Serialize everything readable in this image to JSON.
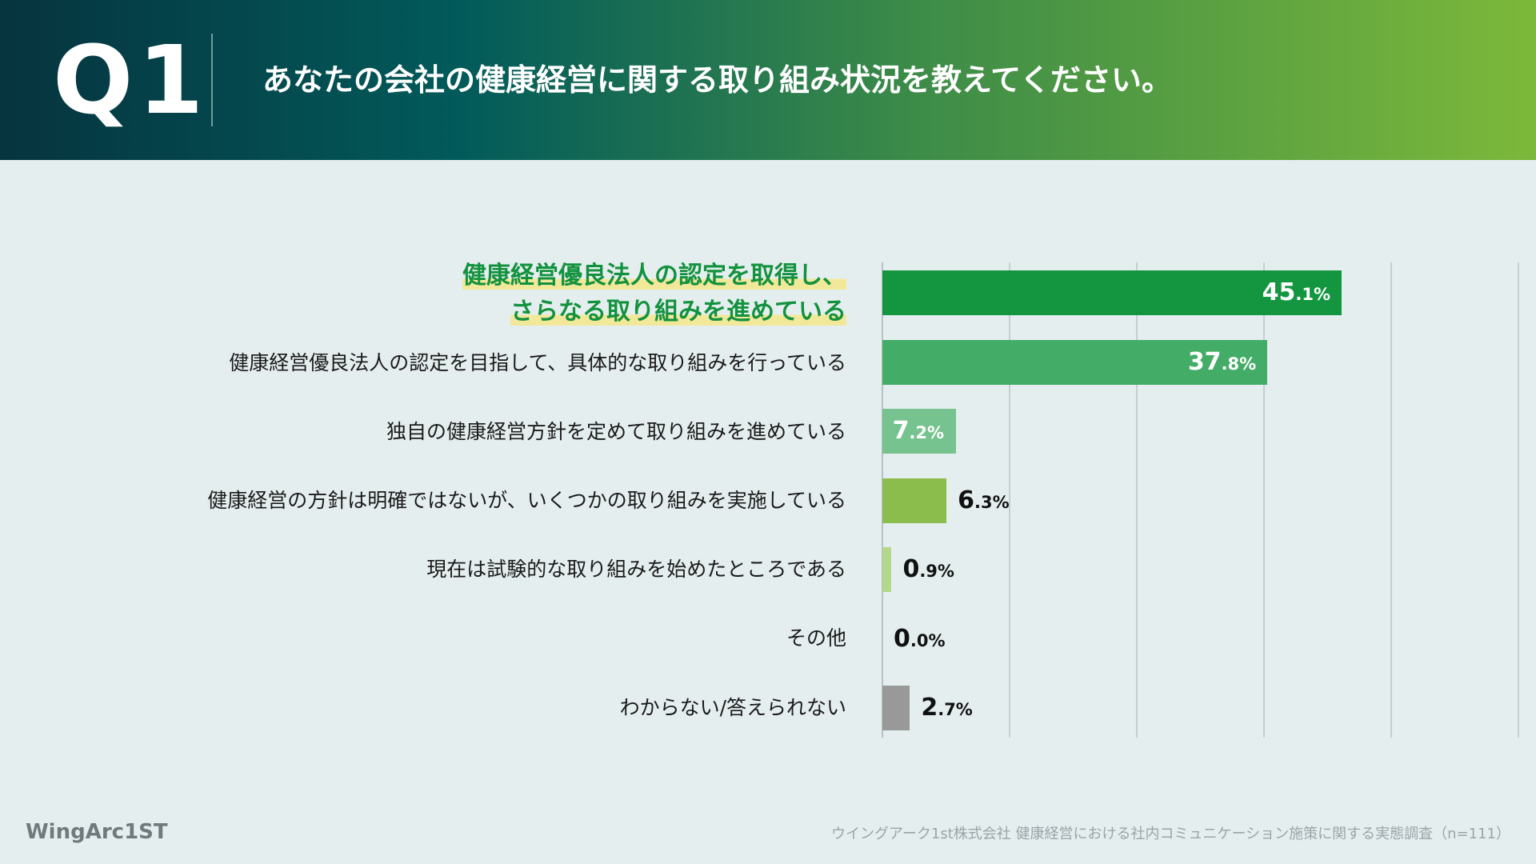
{
  "header": {
    "question_label": "Q1",
    "title": "あなたの会社の健康経営に関する取り組み状況を教えてください。"
  },
  "chart_data": {
    "type": "bar",
    "orientation": "horizontal",
    "categories": [
      "健康経営優良法人の認定を取得し、さらなる取り組みを進めている",
      "健康経営優良法人の認定を目指して、具体的な取り組みを行っている",
      "独自の健康経営方針を定めて取り組みを進めている",
      "健康経営の方針は明確ではないが、いくつかの取り組みを実施している",
      "現在は試験的な取り組みを始めたところである",
      "その他",
      "わからない/答えられない"
    ],
    "highlight_lines": [
      "健康経営優良法人の認定を取得し、",
      "さらなる取り組みを進めている"
    ],
    "values": [
      45.1,
      37.8,
      7.2,
      6.3,
      0.9,
      0.0,
      2.7
    ],
    "value_labels": [
      {
        "main": "45",
        "frac": ".1%"
      },
      {
        "main": "37",
        "frac": ".8%"
      },
      {
        "main": "7",
        "frac": ".2%"
      },
      {
        "main": "6",
        "frac": ".3%"
      },
      {
        "main": "0",
        "frac": ".9%"
      },
      {
        "main": "0",
        "frac": ".0%"
      },
      {
        "main": "2",
        "frac": ".7%"
      }
    ],
    "unit": "%",
    "xlim": [
      0,
      50
    ],
    "grid": true,
    "colors": [
      "#13963f",
      "#43ad68",
      "#76c38f",
      "#8bbd4c",
      "#b4d88a",
      "#c9d6c4",
      "#999999"
    ],
    "label_colors": [
      "#ffffff",
      "#ffffff",
      "#ffffff",
      "#111111",
      "#111111",
      "#111111",
      "#111111"
    ],
    "highlight_color": "#13923e"
  },
  "footer": {
    "logo_text": "WingArc1ST",
    "source": "ウイングアーク1st株式会社 健康経営における社内コミュニケーション施策に関する実態調査（n=111）"
  }
}
